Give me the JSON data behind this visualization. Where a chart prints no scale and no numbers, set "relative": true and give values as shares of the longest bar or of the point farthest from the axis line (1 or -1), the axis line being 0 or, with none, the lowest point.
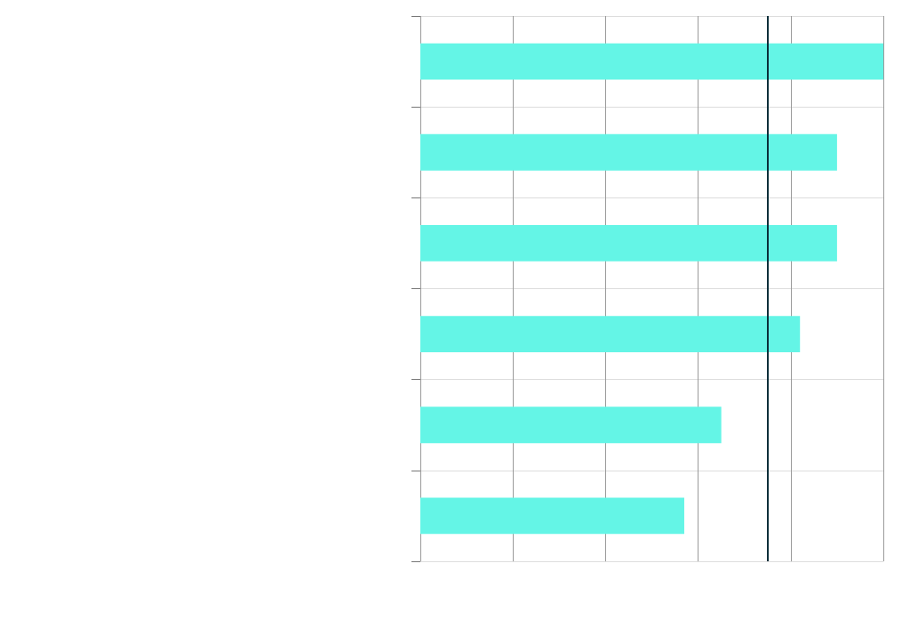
{
  "chart_data": {
    "type": "bar",
    "orientation": "horizontal",
    "relative": true,
    "categories": [
      null,
      null,
      null,
      null,
      null,
      null
    ],
    "values": [
      1,
      0.9,
      0.9,
      0.82,
      0.65,
      0.57
    ],
    "color": "#64f5e6",
    "ref_lines": [
      {
        "axis": "x",
        "value": 0.75,
        "color": "#0b2f3a",
        "line_style": "solid"
      }
    ],
    "grid": true
  }
}
